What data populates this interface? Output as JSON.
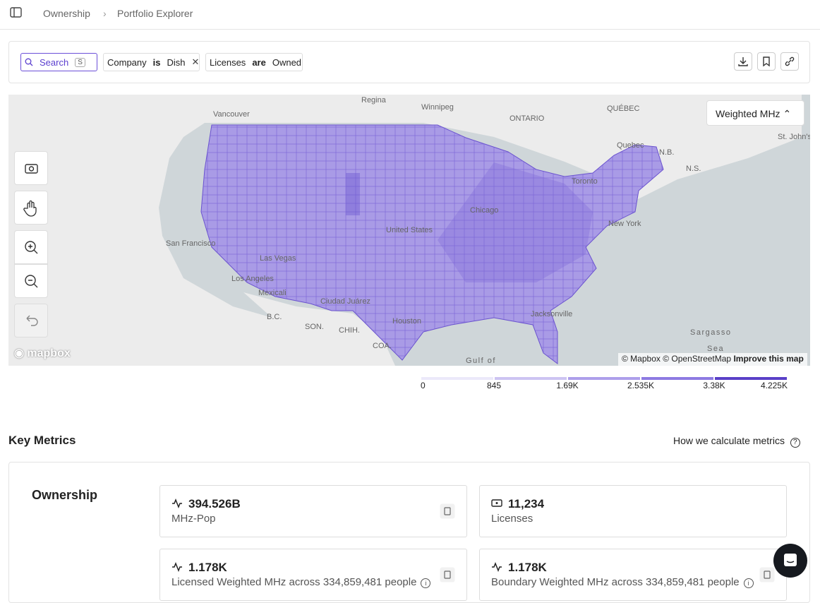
{
  "breadcrumb": [
    "Ownership",
    "Portfolio Explorer"
  ],
  "search": {
    "label": "Search",
    "shortcut": "S"
  },
  "filters": [
    {
      "field": "Company",
      "op": "is",
      "value": "Dish"
    },
    {
      "field": "Licenses",
      "op": "are",
      "value": "Owned"
    }
  ],
  "map": {
    "metric_selector": "Weighted MHz",
    "labels": [
      "Vancouver",
      "Regina",
      "Winnipeg",
      "ONTARIO",
      "QUÉBEC",
      "Quebec",
      "St. John's",
      "N.B.",
      "N.S.",
      "Toronto",
      "New York",
      "United States",
      "San Francisco",
      "Las Vegas",
      "Los Angeles",
      "Mexicali",
      "Ciudad Juárez",
      "Jacksonville",
      "Houston",
      "Chicago",
      "B.C.",
      "SON.",
      "CHIH.",
      "COA.",
      "Sargasso",
      "Sea",
      "Gulf of"
    ],
    "logo": "mapbox",
    "attribution": [
      "© Mapbox",
      "© OpenStreetMap",
      "Improve this map"
    ]
  },
  "legend": {
    "ticks": [
      0,
      845,
      {
        "value": 1690,
        "label": "1.69K"
      },
      {
        "value": 2535,
        "label": "2.535K"
      },
      {
        "value": 3380,
        "label": "3.38K"
      },
      {
        "value": 4225,
        "label": "4.225K"
      }
    ],
    "colors": [
      "#ece9fa",
      "#cdc4f2",
      "#ad9feb",
      "#8d7ae2",
      "#5a40c8"
    ]
  },
  "key_metrics": {
    "title": "Key Metrics",
    "help": "How we calculate metrics",
    "section": "Ownership",
    "cards": [
      {
        "value": "394.526B",
        "label": "MHz-Pop"
      },
      {
        "value": "11,234",
        "label": "Licenses"
      },
      {
        "value": "1.178K",
        "label": "Licensed Weighted MHz across 334,859,481 people"
      },
      {
        "value": "1.178K",
        "label": "Boundary Weighted MHz across 334,859,481 people"
      }
    ]
  }
}
